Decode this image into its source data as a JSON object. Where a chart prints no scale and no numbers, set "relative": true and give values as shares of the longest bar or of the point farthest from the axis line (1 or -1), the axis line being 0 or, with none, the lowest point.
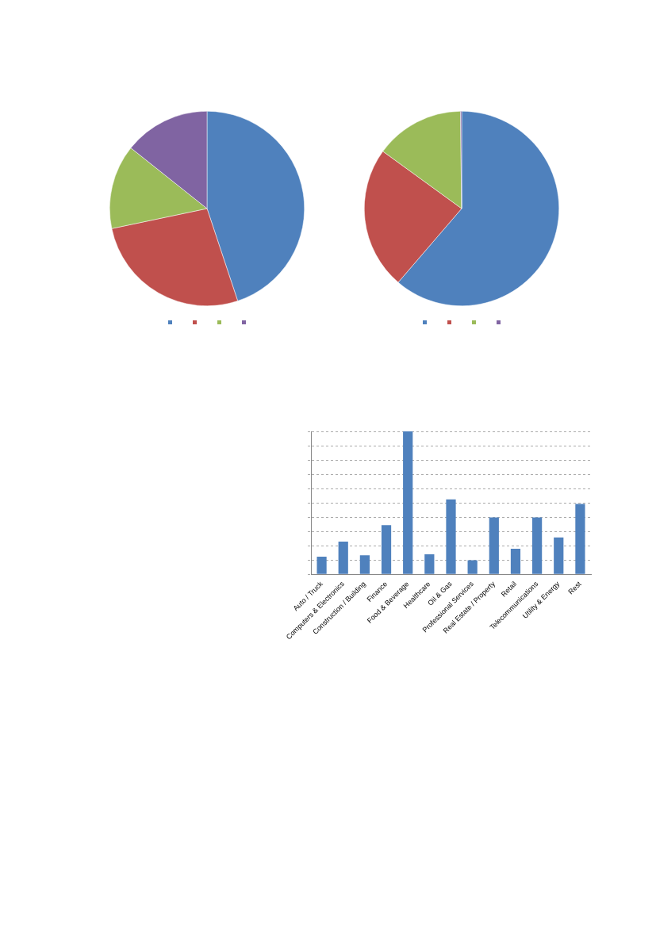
{
  "chart_data": [
    {
      "type": "pie",
      "categories": [
        null,
        null,
        null,
        null
      ],
      "values": [
        44.9,
        26.8,
        14.0,
        14.3
      ],
      "colors": [
        "#4f81bd",
        "#c0504d",
        "#9bbb59",
        "#8064a2"
      ]
    },
    {
      "type": "pie",
      "categories": [
        null,
        null,
        null,
        null
      ],
      "values": [
        61.3,
        23.7,
        14.8,
        0.2
      ],
      "colors": [
        "#4f81bd",
        "#c0504d",
        "#9bbb59",
        "#8064a2"
      ]
    },
    {
      "type": "bar",
      "relative": true,
      "grid": "y",
      "categories": [
        "Auto / Truck",
        "Computers & Electronics",
        "Construction / Building",
        "Finance",
        "Food & Beverage",
        "Healthcare",
        "Oil & Gas",
        "Professional Services",
        "Real Estate / Property",
        "Retail",
        "Telecommunications",
        "Utility & Energy",
        "Rest"
      ],
      "values": [
        0.124,
        0.229,
        0.133,
        0.344,
        1,
        0.14,
        0.525,
        0.099,
        0.399,
        0.179,
        0.399,
        0.259,
        0.493
      ],
      "color": "#4f81bd"
    }
  ]
}
